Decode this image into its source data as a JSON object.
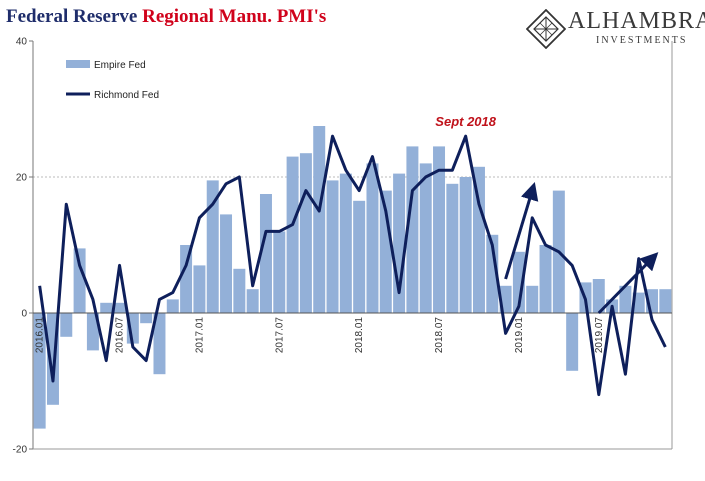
{
  "title": {
    "prefix": "Federal Reserve",
    "accent": "Regional Manu. PMI's"
  },
  "logo": {
    "name": "ALHAMBRA",
    "sub": "INVESTMENTS"
  },
  "colors": {
    "bar": "#93b0d8",
    "line": "#0e1f5b",
    "accent": "#d0021b",
    "gridline": "#bbbbbb"
  },
  "chart_data": {
    "type": "bar",
    "ylim": [
      -20,
      40
    ],
    "yticks": [
      -20,
      0,
      20,
      40
    ],
    "x": [
      "2016.01",
      "2016.02",
      "2016.03",
      "2016.04",
      "2016.05",
      "2016.06",
      "2016.07",
      "2016.08",
      "2016.09",
      "2016.10",
      "2016.11",
      "2016.12",
      "2017.01",
      "2017.02",
      "2017.03",
      "2017.04",
      "2017.05",
      "2017.06",
      "2017.07",
      "2017.08",
      "2017.09",
      "2017.10",
      "2017.11",
      "2017.12",
      "2018.01",
      "2018.02",
      "2018.03",
      "2018.04",
      "2018.05",
      "2018.06",
      "2018.07",
      "2018.08",
      "2018.09",
      "2018.10",
      "2018.11",
      "2018.12",
      "2019.01",
      "2019.02",
      "2019.03",
      "2019.04",
      "2019.05",
      "2019.06",
      "2019.07",
      "2019.08",
      "2019.09",
      "2019.10",
      "2019.11",
      "2019.12"
    ],
    "xtick_labels": [
      "2016.01",
      "2016.07",
      "2017.01",
      "2017.07",
      "2018.01",
      "2018.07",
      "2019.01",
      "2019.07"
    ],
    "grid": "horizontal line at 20",
    "legend_position": "top-left",
    "series": [
      {
        "name": "Empire Fed",
        "kind": "bar",
        "values": [
          -17,
          -13.5,
          -3.5,
          9.5,
          -5.5,
          1.5,
          1.5,
          -4.5,
          -1.5,
          -9,
          2,
          10,
          7,
          19.5,
          14.5,
          6.5,
          3.5,
          17.5,
          12,
          23,
          23.5,
          27.5,
          19.5,
          20.5,
          16.5,
          22,
          18,
          20.5,
          24.5,
          22,
          24.5,
          19,
          20,
          21.5,
          11.5,
          4,
          9,
          4,
          10,
          18,
          -8.5,
          4.5,
          5,
          2,
          4,
          3,
          3.5,
          3.5
        ]
      },
      {
        "name": "Richmond Fed",
        "kind": "line",
        "values": [
          4,
          -10,
          16,
          7,
          2,
          -7,
          7,
          -5,
          -7,
          2,
          3,
          7,
          14,
          16,
          19,
          20,
          4,
          12,
          12,
          13,
          18,
          15,
          26,
          21,
          18,
          23,
          15,
          3,
          18,
          20,
          21,
          21,
          26,
          16,
          10,
          -3,
          1,
          14,
          10,
          9,
          7,
          2,
          -12,
          1,
          -9,
          8,
          -1,
          -5
        ]
      }
    ],
    "annotations": [
      {
        "text": "Sept 2018",
        "x": "2018.09"
      }
    ],
    "arrows": [
      {
        "from": [
          "2018.12",
          5
        ],
        "to": [
          "2019.02",
          18
        ]
      },
      {
        "from": [
          "2019.07",
          0
        ],
        "to": [
          "2019.11",
          8
        ]
      }
    ]
  }
}
